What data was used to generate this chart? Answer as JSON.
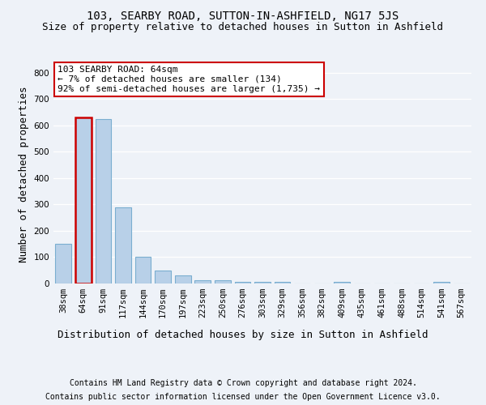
{
  "title": "103, SEARBY ROAD, SUTTON-IN-ASHFIELD, NG17 5JS",
  "subtitle": "Size of property relative to detached houses in Sutton in Ashfield",
  "xlabel": "Distribution of detached houses by size in Sutton in Ashfield",
  "ylabel": "Number of detached properties",
  "categories": [
    "38sqm",
    "64sqm",
    "91sqm",
    "117sqm",
    "144sqm",
    "170sqm",
    "197sqm",
    "223sqm",
    "250sqm",
    "276sqm",
    "303sqm",
    "329sqm",
    "356sqm",
    "382sqm",
    "409sqm",
    "435sqm",
    "461sqm",
    "488sqm",
    "514sqm",
    "541sqm",
    "567sqm"
  ],
  "values": [
    150,
    630,
    625,
    290,
    100,
    48,
    32,
    12,
    12,
    5,
    5,
    5,
    0,
    0,
    5,
    0,
    0,
    0,
    0,
    5,
    0
  ],
  "bar_color": "#b8d0e8",
  "bar_edge_color": "#7aaed0",
  "highlight_index": 1,
  "highlight_bar_edge_color": "#cc0000",
  "annotation_text": "103 SEARBY ROAD: 64sqm\n← 7% of detached houses are smaller (134)\n92% of semi-detached houses are larger (1,735) →",
  "annotation_box_color": "#ffffff",
  "annotation_box_edge_color": "#cc0000",
  "ylim": [
    0,
    830
  ],
  "yticks": [
    0,
    100,
    200,
    300,
    400,
    500,
    600,
    700,
    800
  ],
  "footer_line1": "Contains HM Land Registry data © Crown copyright and database right 2024.",
  "footer_line2": "Contains public sector information licensed under the Open Government Licence v3.0.",
  "background_color": "#eef2f8",
  "plot_bg_color": "#eef2f8",
  "title_fontsize": 10,
  "subtitle_fontsize": 9,
  "axis_label_fontsize": 9,
  "tick_fontsize": 7.5,
  "footer_fontsize": 7,
  "annotation_fontsize": 8
}
